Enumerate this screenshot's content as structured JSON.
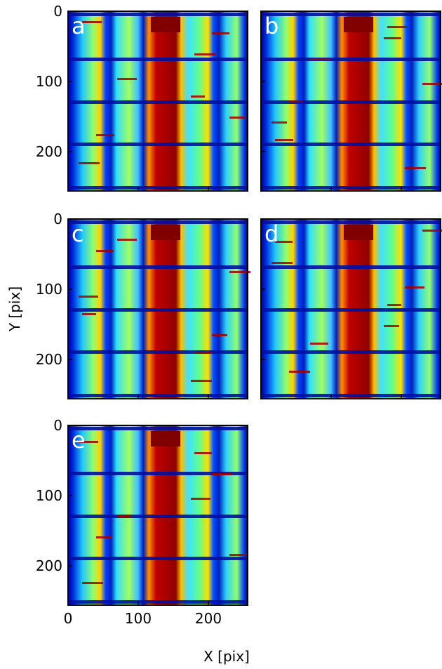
{
  "chart_data": [
    {
      "type": "image",
      "label": "a",
      "xlim": [
        0,
        256
      ],
      "ylim": [
        256,
        0
      ],
      "xticks": [
        0,
        100,
        200
      ],
      "yticks": [
        0,
        100,
        200
      ]
    },
    {
      "type": "image",
      "label": "b",
      "xlim": [
        0,
        256
      ],
      "ylim": [
        256,
        0
      ],
      "xticks": [
        0,
        100,
        200
      ],
      "yticks": [
        0,
        100,
        200
      ]
    },
    {
      "type": "image",
      "label": "c",
      "xlim": [
        0,
        256
      ],
      "ylim": [
        256,
        0
      ],
      "xticks": [
        0,
        100,
        200
      ],
      "yticks": [
        0,
        100,
        200
      ]
    },
    {
      "type": "image",
      "label": "d",
      "xlim": [
        0,
        256
      ],
      "ylim": [
        256,
        0
      ],
      "xticks": [
        0,
        100,
        200
      ],
      "yticks": [
        0,
        100,
        200
      ]
    },
    {
      "type": "image",
      "label": "e",
      "xlim": [
        0,
        256
      ],
      "ylim": [
        256,
        0
      ],
      "xticks": [
        0,
        100,
        200
      ],
      "yticks": [
        0,
        100,
        200
      ]
    }
  ],
  "xlabel": "X [pix]",
  "ylabel": "Y [pix]"
}
